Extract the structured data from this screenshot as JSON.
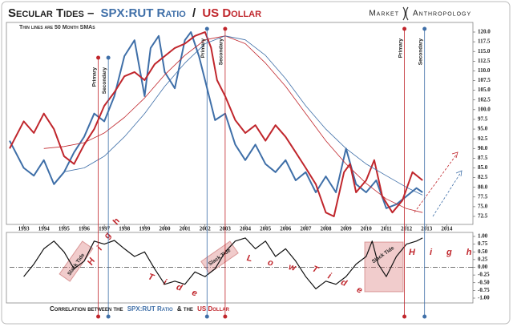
{
  "title_parts": [
    "Secular Tides –",
    "SPX:RUT Ratio",
    "/",
    "US Dollar"
  ],
  "subtitle": "Thin lines are 50 Month SMAs",
  "brand": [
    "Market",
    "Anthropology"
  ],
  "footer_parts": [
    "Correlation between the",
    "SPX:RUT Ratio",
    "& the",
    "US Dollar"
  ],
  "markers": [
    {
      "x": 1996.7,
      "label": "Primary",
      "color": "#c0262c"
    },
    {
      "x": 1997.2,
      "label": "Secondary",
      "color": "#3f6fa8"
    },
    {
      "x": 2002.1,
      "label": "Primary",
      "color": "#3f6fa8"
    },
    {
      "x": 2003.0,
      "label": "Secondary",
      "color": "#c0262c"
    },
    {
      "x": 2011.9,
      "label": "Primary",
      "color": "#c0262c"
    },
    {
      "x": 2012.9,
      "label": "Secondary",
      "color": "#3f6fa8"
    }
  ],
  "chart_data": [
    {
      "type": "line",
      "xlim": [
        1992.3,
        2015.3
      ],
      "xticks": [
        1993,
        1994,
        1995,
        1996,
        1997,
        1998,
        1999,
        2000,
        2001,
        2002,
        2003,
        2004,
        2005,
        2006,
        2007,
        2008,
        2009,
        2010,
        2011,
        2012,
        2013,
        2014
      ],
      "ylim": [
        72.5,
        120
      ],
      "yticks": [
        {
          "value": 120,
          "label": "120.0"
        },
        {
          "value": 117.5,
          "label": "117.5"
        },
        {
          "value": 115,
          "label": "115.0"
        },
        {
          "value": 112.5,
          "label": "112.5"
        },
        {
          "value": 110,
          "label": "110.0"
        },
        {
          "value": 107.5,
          "label": "107.5"
        },
        {
          "value": 105,
          "label": "105.0"
        },
        {
          "value": 102.5,
          "label": "102.5"
        },
        {
          "value": 100,
          "label": "100.0"
        },
        {
          "value": 97.5,
          "label": "97.5"
        },
        {
          "value": 95,
          "label": "95.0"
        },
        {
          "value": 92.5,
          "label": "92.5"
        },
        {
          "value": 90,
          "label": "90.0"
        },
        {
          "value": 87.5,
          "label": "87.5"
        },
        {
          "value": 85,
          "label": "85.0"
        },
        {
          "value": 82.5,
          "label": "82.5"
        },
        {
          "value": 80,
          "label": "80.0"
        },
        {
          "value": 77.5,
          "label": "77.5"
        },
        {
          "value": 75,
          "label": "75.0"
        },
        {
          "value": 72.5,
          "label": "72.5"
        }
      ],
      "series": [
        {
          "name": "SPX:RUT Ratio",
          "color": "#3f6fa8",
          "width": 2,
          "x": [
            1992.3,
            1993,
            1993.5,
            1994,
            1994.5,
            1995,
            1995.5,
            1996,
            1996.5,
            1997,
            1997.5,
            1998,
            1998.5,
            1999,
            1999.3,
            1999.7,
            2000,
            2000.5,
            2001,
            2001.3,
            2001.7,
            2002,
            2002.5,
            2003,
            2003.5,
            2004,
            2004.5,
            2005,
            2005.5,
            2006,
            2006.5,
            2007,
            2007.5,
            2008,
            2008.5,
            2009,
            2009.5,
            2010,
            2010.5,
            2011,
            2011.5,
            2012,
            2012.5,
            2012.8
          ],
          "values": [
            92,
            85,
            83,
            87,
            80.8,
            83.9,
            89,
            93,
            99,
            97,
            103.5,
            113.8,
            117.9,
            103.5,
            115.9,
            119,
            109.7,
            105.5,
            117.9,
            120,
            113.8,
            107.6,
            97.3,
            99,
            91,
            87,
            91,
            86,
            83.9,
            87,
            81.8,
            83.9,
            78.7,
            82.8,
            78.7,
            90,
            80.8,
            78.7,
            81.8,
            74.6,
            75.6,
            77.7,
            79.8,
            78.7
          ]
        },
        {
          "name": "US Dollar",
          "color": "#c0262c",
          "width": 2,
          "x": [
            1992.3,
            1993,
            1993.5,
            1994,
            1994.5,
            1995,
            1995.5,
            1996,
            1996.5,
            1997,
            1997.5,
            1998,
            1998.5,
            1999,
            1999.5,
            2000,
            2000.5,
            2001,
            2001.5,
            2002,
            2002.3,
            2002.6,
            2003,
            2003.5,
            2004,
            2004.5,
            2005,
            2005.5,
            2006,
            2006.5,
            2007,
            2007.5,
            2008,
            2008.4,
            2008.9,
            2009.2,
            2009.5,
            2010,
            2010.4,
            2010.8,
            2011.3,
            2011.8,
            2012.3,
            2012.8
          ],
          "values": [
            90,
            97,
            94,
            99,
            95,
            88,
            86,
            91,
            95,
            101,
            104.5,
            108.6,
            109.7,
            107.6,
            111.7,
            113.8,
            115.9,
            117,
            119,
            120,
            116,
            107.6,
            103.5,
            97.3,
            94,
            96,
            92,
            96,
            93,
            89,
            85,
            80.8,
            73.5,
            72.5,
            83.9,
            86,
            78.7,
            81.8,
            87,
            77.7,
            73.5,
            76.6,
            83.9,
            81.8
          ]
        },
        {
          "color": "#c0262c",
          "width": 0.8,
          "x": [
            1994,
            1995,
            1996,
            1997,
            1998,
            1999,
            2000,
            2001,
            2002,
            2003,
            2004,
            2005,
            2006,
            2007,
            2008,
            2009,
            2010,
            2011,
            2012,
            2012.8
          ],
          "values": [
            90,
            90.5,
            91.5,
            94,
            98,
            103,
            109,
            114,
            118,
            119,
            117,
            112,
            106,
            99,
            92,
            86,
            81,
            77,
            74.5,
            73.5
          ]
        },
        {
          "color": "#3f6fa8",
          "width": 0.8,
          "x": [
            1995,
            1996,
            1997,
            1998,
            1999,
            2000,
            2001,
            2002,
            2003,
            2004,
            2005,
            2006,
            2007,
            2008,
            2009,
            2010,
            2011,
            2012,
            2012.8
          ],
          "values": [
            84,
            85,
            88,
            93,
            99,
            106,
            112,
            117,
            119,
            118,
            114,
            108,
            101,
            95,
            90,
            86,
            83,
            80,
            78
          ]
        }
      ]
    },
    {
      "type": "line",
      "xlim": [
        1992.3,
        2015.3
      ],
      "ylim": [
        -1,
        1
      ],
      "yticks": [
        {
          "value": 1,
          "label": "1.00"
        },
        {
          "value": 0.75,
          "label": "0.75"
        },
        {
          "value": 0.5,
          "label": "0.50"
        },
        {
          "value": 0.25,
          "label": "0.25"
        },
        {
          "value": 0,
          "label": "0.00"
        },
        {
          "value": -0.25,
          "label": "-0.25"
        },
        {
          "value": -0.5,
          "label": "-0.50"
        },
        {
          "value": -0.75,
          "label": "-0.75"
        },
        {
          "value": -1,
          "label": "-1.00"
        }
      ],
      "annotations": [
        "Slack Tide",
        "High",
        "Tide",
        "Slack Tide",
        "Low",
        "Tide",
        "Slack Tide",
        "High"
      ],
      "series": [
        {
          "color": "#111",
          "width": 1.2,
          "x": [
            1993,
            1993.5,
            1994,
            1994.5,
            1995,
            1995.5,
            1996,
            1996.5,
            1997,
            1997.5,
            1998,
            1998.5,
            1999,
            1999.5,
            2000,
            2000.5,
            2001,
            2001.5,
            2002,
            2002.5,
            2003,
            2003.5,
            2004,
            2004.5,
            2005,
            2005.5,
            2006,
            2006.5,
            2007,
            2007.5,
            2008,
            2008.5,
            2009,
            2009.5,
            2010,
            2010.3,
            2010.6,
            2011,
            2011.5,
            2012,
            2012.5,
            2012.8
          ],
          "values": [
            -0.3,
            0.1,
            0.6,
            0.85,
            0.5,
            -0.05,
            0.2,
            0.85,
            0.75,
            0.87,
            0.6,
            0.35,
            0.5,
            -0.05,
            -0.55,
            -0.45,
            -0.55,
            -0.15,
            -0.3,
            -0.05,
            0.5,
            0.85,
            0.95,
            0.6,
            0.85,
            0.35,
            0.6,
            0.2,
            -0.3,
            -0.7,
            -0.45,
            -0.55,
            -0.3,
            0.1,
            0.35,
            0.85,
            0.1,
            -0.3,
            0.35,
            0.75,
            0.85,
            0.95
          ]
        }
      ]
    }
  ]
}
